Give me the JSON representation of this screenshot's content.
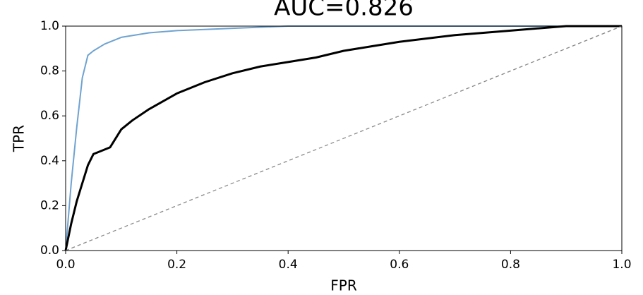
{
  "chart_data": {
    "type": "line",
    "title": "AUC=0.826",
    "xlabel": "FPR",
    "ylabel": "TPR",
    "xlim": [
      0,
      1
    ],
    "ylim": [
      0,
      1
    ],
    "xticks": [
      {
        "value": 0,
        "label": "0.0"
      },
      0.2,
      0.4,
      0.6,
      0.8,
      {
        "value": 1,
        "label": "1.0"
      }
    ],
    "yticks": [
      {
        "value": 0,
        "label": "0.0"
      },
      0.2,
      0.4,
      0.6,
      0.8,
      {
        "value": 1,
        "label": "1.0"
      }
    ],
    "series": [
      {
        "color": "#6fa3d0",
        "width": 2,
        "dash": false,
        "x": [
          0,
          0.01,
          0.02,
          0.03,
          0.04,
          0.05,
          0.07,
          0.1,
          0.15,
          0.2,
          0.3,
          0.4,
          0.6,
          0.8,
          1
        ],
        "values": [
          0,
          0.3,
          0.55,
          0.77,
          0.87,
          0.89,
          0.92,
          0.95,
          0.97,
          0.98,
          0.99,
          1,
          1,
          1,
          1
        ]
      },
      {
        "color": "#000000",
        "width": 3,
        "dash": false,
        "x": [
          0,
          0.01,
          0.02,
          0.03,
          0.04,
          0.05,
          0.06,
          0.08,
          0.1,
          0.12,
          0.15,
          0.2,
          0.25,
          0.3,
          0.35,
          0.4,
          0.45,
          0.5,
          0.55,
          0.6,
          0.7,
          0.8,
          0.9,
          1
        ],
        "values": [
          0,
          0.12,
          0.22,
          0.3,
          0.38,
          0.43,
          0.44,
          0.46,
          0.54,
          0.58,
          0.63,
          0.7,
          0.75,
          0.79,
          0.82,
          0.84,
          0.86,
          0.89,
          0.91,
          0.93,
          0.96,
          0.98,
          1,
          1
        ]
      },
      {
        "color": "#888888",
        "width": 1.3,
        "dash": true,
        "x": [
          0,
          1
        ],
        "values": [
          0,
          1
        ]
      }
    ]
  }
}
